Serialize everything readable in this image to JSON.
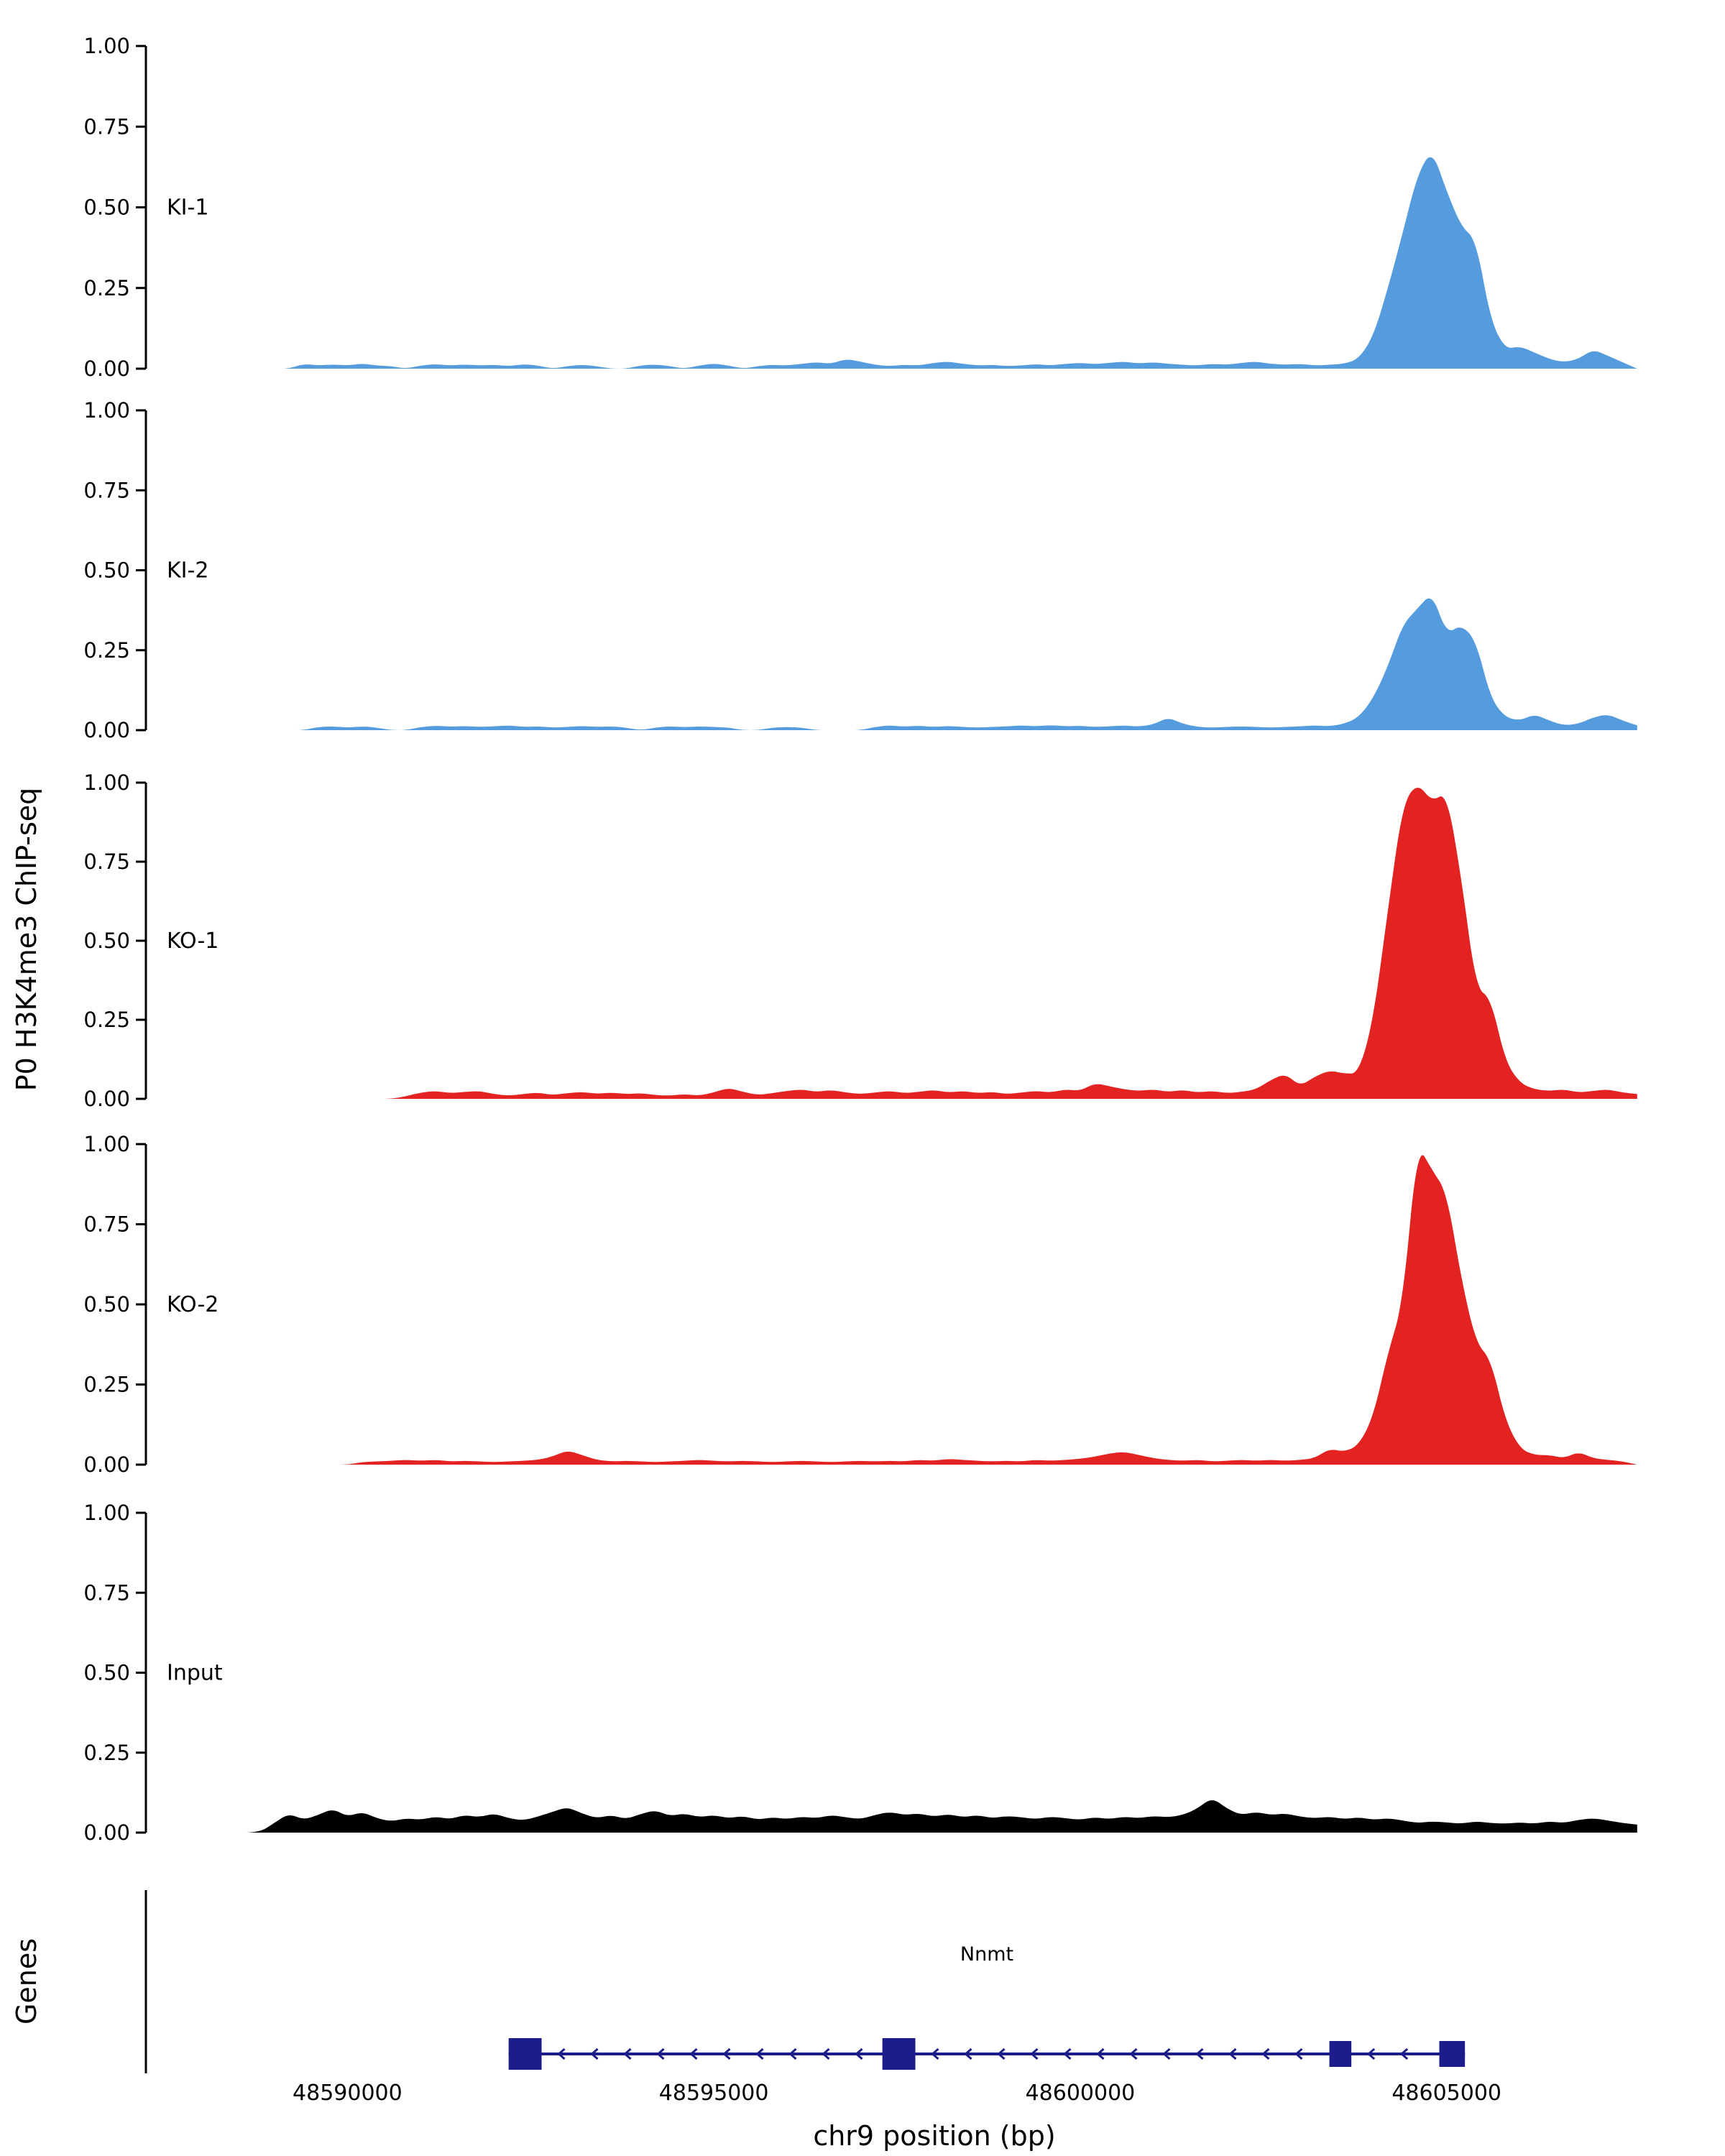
{
  "figure": {
    "ylabel": "P0 H3K4me3 ChIP-seq",
    "xlabel": "chr9 position (bp)",
    "genes_panel_label": "Genes",
    "y_tick_labels": [
      "0.00",
      "0.25",
      "0.50",
      "0.75",
      "1.00"
    ],
    "x_tick_labels": [
      "48590000",
      "48595000",
      "48600000",
      "48605000"
    ],
    "x_ticks_bp": [
      48590000,
      48595000,
      48600000,
      48605000
    ],
    "xlim_bp": [
      48587250,
      48607720
    ],
    "axis_color": "#000000"
  },
  "gene": {
    "name": "Nnmt",
    "strand": "-",
    "start_bp": 48592200,
    "end_bp": 48605250,
    "exons_bp": [
      [
        48592200,
        48592650
      ],
      [
        48597300,
        48597750
      ],
      [
        48603400,
        48603700
      ],
      [
        48604900,
        48605250
      ]
    ],
    "color": "#1C1C8A"
  },
  "chart_data": {
    "type": "area",
    "title": "",
    "xlabel": "chr9 position (bp)",
    "ylabel": "P0 H3K4me3 ChIP-seq",
    "ylim": [
      0,
      1
    ],
    "y_ticks": [
      0,
      0.25,
      0.5,
      0.75,
      1
    ],
    "x_ticks": [
      48590000,
      48595000,
      48600000,
      48605000
    ],
    "x_start_bp": 48588600,
    "x_step_bp": 200,
    "series": [
      {
        "name": "KI-1",
        "color": "#559CDE",
        "values": [
          0,
          0,
          0,
          0,
          0.015,
          0.01,
          0.013,
          0.01,
          0.016,
          0.01,
          0.008,
          0,
          0.01,
          0.014,
          0.01,
          0.013,
          0.01,
          0.012,
          0.008,
          0.014,
          0.01,
          0,
          0.008,
          0.012,
          0.008,
          0,
          0,
          0.01,
          0.013,
          0.008,
          0,
          0.01,
          0.016,
          0.01,
          0,
          0.008,
          0.012,
          0.01,
          0.015,
          0.02,
          0.015,
          0.03,
          0.022,
          0.012,
          0.008,
          0.012,
          0.01,
          0.018,
          0.022,
          0.015,
          0.01,
          0.012,
          0.008,
          0.01,
          0.014,
          0.01,
          0.015,
          0.018,
          0.014,
          0.018,
          0.022,
          0.016,
          0.02,
          0.015,
          0.012,
          0.01,
          0.015,
          0.012,
          0.018,
          0.022,
          0.015,
          0.012,
          0.015,
          0.01,
          0.012,
          0.015,
          0.03,
          0.1,
          0.25,
          0.42,
          0.6,
          0.68,
          0.55,
          0.44,
          0.4,
          0.15,
          0.06,
          0.07,
          0.05,
          0.03,
          0.02,
          0.03,
          0.06,
          0.04,
          0.02,
          0
        ]
      },
      {
        "name": "KI-2",
        "color": "#559CDE",
        "values": [
          0,
          0,
          0,
          0,
          0,
          0.01,
          0.012,
          0.008,
          0.012,
          0.008,
          0,
          0,
          0.01,
          0.014,
          0.011,
          0.013,
          0.01,
          0.012,
          0.015,
          0.01,
          0.012,
          0.008,
          0.01,
          0.013,
          0.01,
          0.012,
          0.008,
          0,
          0.008,
          0.012,
          0.009,
          0.012,
          0.01,
          0.008,
          0,
          0,
          0.008,
          0.01,
          0.008,
          0,
          0,
          0,
          0,
          0.01,
          0.015,
          0.011,
          0.014,
          0.01,
          0.013,
          0.01,
          0.008,
          0.01,
          0.012,
          0.015,
          0.012,
          0.016,
          0.012,
          0.014,
          0.01,
          0.012,
          0.015,
          0.011,
          0.018,
          0.04,
          0.02,
          0.01,
          0.008,
          0.01,
          0.012,
          0.01,
          0.008,
          0.01,
          0.012,
          0.015,
          0.012,
          0.02,
          0.04,
          0.1,
          0.2,
          0.33,
          0.38,
          0.43,
          0.3,
          0.33,
          0.28,
          0.1,
          0.04,
          0.03,
          0.05,
          0.03,
          0.015,
          0.02,
          0.04,
          0.05,
          0.03,
          0.015
        ]
      },
      {
        "name": "KO-1",
        "color": "#E32322",
        "values": [
          0,
          0,
          0,
          0,
          0,
          0,
          0,
          0,
          0,
          0,
          0,
          0.008,
          0.02,
          0.025,
          0.018,
          0.022,
          0.025,
          0.015,
          0.01,
          0.015,
          0.02,
          0.012,
          0.018,
          0.022,
          0.016,
          0.02,
          0.015,
          0.018,
          0.012,
          0.01,
          0.015,
          0.01,
          0.02,
          0.035,
          0.022,
          0.012,
          0.018,
          0.025,
          0.03,
          0.022,
          0.028,
          0.02,
          0.015,
          0.02,
          0.025,
          0.018,
          0.022,
          0.028,
          0.02,
          0.025,
          0.018,
          0.022,
          0.015,
          0.02,
          0.025,
          0.02,
          0.03,
          0.025,
          0.05,
          0.04,
          0.03,
          0.025,
          0.03,
          0.022,
          0.028,
          0.02,
          0.025,
          0.018,
          0.022,
          0.03,
          0.06,
          0.08,
          0.04,
          0.07,
          0.09,
          0.08,
          0.08,
          0.25,
          0.6,
          0.93,
          1.0,
          0.94,
          0.97,
          0.7,
          0.35,
          0.32,
          0.12,
          0.05,
          0.03,
          0.025,
          0.03,
          0.02,
          0.025,
          0.03,
          0.02,
          0.015
        ]
      },
      {
        "name": "KO-2",
        "color": "#E32322",
        "values": [
          0,
          0,
          0,
          0,
          0,
          0,
          0,
          0,
          0.008,
          0.01,
          0.012,
          0.015,
          0.012,
          0.015,
          0.01,
          0.012,
          0.01,
          0.008,
          0.01,
          0.012,
          0.015,
          0.025,
          0.045,
          0.03,
          0.015,
          0.01,
          0.012,
          0.01,
          0.008,
          0.01,
          0.012,
          0.015,
          0.012,
          0.01,
          0.012,
          0.01,
          0.008,
          0.01,
          0.012,
          0.01,
          0.008,
          0.01,
          0.012,
          0.01,
          0.012,
          0.01,
          0.015,
          0.012,
          0.018,
          0.015,
          0.012,
          0.01,
          0.012,
          0.01,
          0.015,
          0.012,
          0.015,
          0.018,
          0.025,
          0.035,
          0.04,
          0.03,
          0.02,
          0.015,
          0.012,
          0.015,
          0.01,
          0.012,
          0.015,
          0.012,
          0.015,
          0.012,
          0.015,
          0.02,
          0.05,
          0.04,
          0.06,
          0.15,
          0.35,
          0.5,
          1.0,
          0.92,
          0.85,
          0.58,
          0.38,
          0.33,
          0.14,
          0.05,
          0.03,
          0.03,
          0.02,
          0.04,
          0.02,
          0.015,
          0.01,
          0
        ]
      },
      {
        "name": "Input",
        "color": "#000000",
        "values": [
          0,
          0,
          0.03,
          0.06,
          0.04,
          0.055,
          0.075,
          0.05,
          0.065,
          0.045,
          0.035,
          0.045,
          0.04,
          0.05,
          0.042,
          0.055,
          0.048,
          0.06,
          0.045,
          0.038,
          0.05,
          0.065,
          0.08,
          0.06,
          0.045,
          0.055,
          0.042,
          0.058,
          0.07,
          0.052,
          0.06,
          0.048,
          0.055,
          0.045,
          0.052,
          0.04,
          0.048,
          0.042,
          0.05,
          0.045,
          0.055,
          0.048,
          0.042,
          0.055,
          0.065,
          0.055,
          0.06,
          0.05,
          0.058,
          0.048,
          0.055,
          0.045,
          0.052,
          0.048,
          0.042,
          0.05,
          0.045,
          0.04,
          0.048,
          0.042,
          0.05,
          0.045,
          0.052,
          0.048,
          0.055,
          0.075,
          0.11,
          0.075,
          0.055,
          0.065,
          0.055,
          0.06,
          0.05,
          0.045,
          0.05,
          0.042,
          0.048,
          0.04,
          0.045,
          0.038,
          0.03,
          0.035,
          0.032,
          0.028,
          0.035,
          0.03,
          0.028,
          0.032,
          0.028,
          0.035,
          0.03,
          0.04,
          0.045,
          0.038,
          0.03,
          0.025
        ]
      }
    ]
  }
}
